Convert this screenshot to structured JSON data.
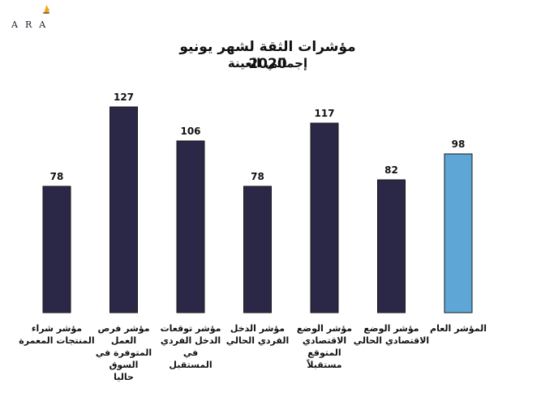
{
  "logo": {
    "text": "ARA",
    "mark_color": "#f2a51c"
  },
  "chart_data": {
    "type": "bar",
    "title": "مؤشرات الثقة لشهر يونيو 2020",
    "subtitle": "إجمالي العينة",
    "categories": [
      "مؤشر شراء\nالمنتجات المعمرة",
      "مؤشر فرص العمل\nالمتوفرة في السوق\nحاليا",
      "مؤشر توقعات\nالدخل الفردي في\nالمستقبل",
      "مؤشر الدخل\nالفردي الحالي",
      "مؤشر الوضع\nالاقتصادي المتوقع\nمستقبلاً",
      "مؤشر الوضع\nالاقتصادي الحالي",
      "المؤشر العام"
    ],
    "values": [
      78,
      127,
      106,
      78,
      117,
      82,
      98
    ],
    "colors": [
      "#2b2746",
      "#2b2746",
      "#2b2746",
      "#2b2746",
      "#2b2746",
      "#2b2746",
      "#5ea6d6"
    ],
    "ylim": [
      0,
      140
    ],
    "grid": false,
    "data_labels": true
  }
}
